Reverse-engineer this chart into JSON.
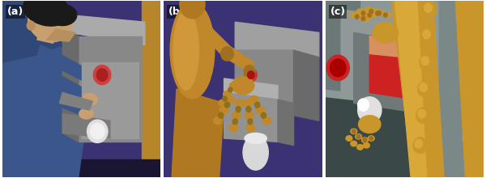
{
  "figsize": [
    6.0,
    2.2
  ],
  "dpi": 100,
  "background_color": "#ffffff",
  "panel_labels": [
    "(a)",
    "(b)",
    "(c)"
  ],
  "label_color": "#ffffff",
  "label_fontsize": 9,
  "panel_a": {
    "bg": "#3d3578",
    "person_skin": "#c8a070",
    "person_hair": "#1a1a1a",
    "person_shirt": "#3a568a",
    "machine_body": "#8a8a8a",
    "machine_light": "#d0d0d0",
    "machine_dark": "#6a6a6a",
    "machine_red": "#cc4444",
    "arm_tan": "#b8862a"
  },
  "panel_b": {
    "bg": "#3d3578",
    "body_tan": "#c0882a",
    "machine_gray": "#8a8a8a",
    "machine_dark": "#6a6a6a",
    "machine_red": "#cc4444",
    "cup_white": "#d8d8d8",
    "hand_tan": "#c0882a"
  },
  "panel_c": {
    "bg_top": "#6a7878",
    "bg_bottom": "#4a5858",
    "arm_tan": "#c8962a",
    "machine_gray": "#8a9090",
    "machine_dark": "#6a7070",
    "red_button": "#cc2222",
    "cup_white": "#e0e0e0",
    "red_box": "#cc2222",
    "surface_dark": "#3a4040"
  }
}
